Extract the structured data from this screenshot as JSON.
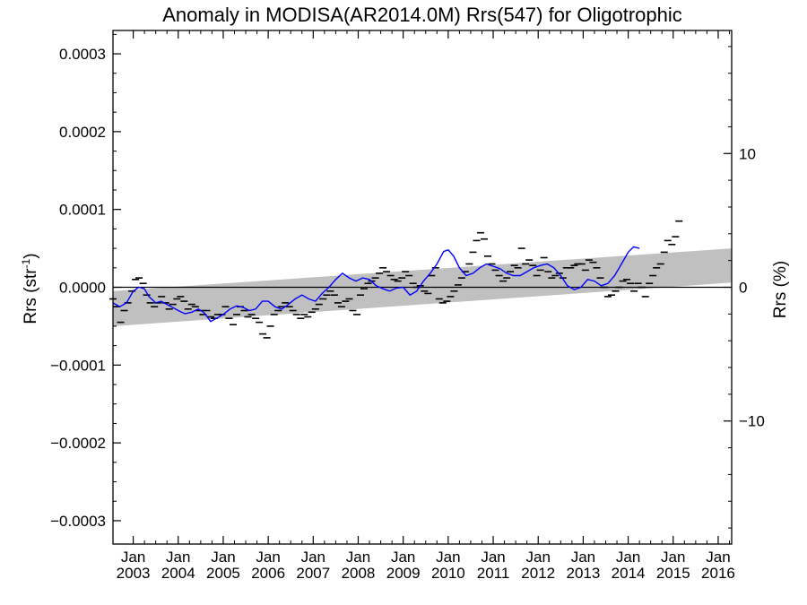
{
  "chart_data": {
    "type": "line",
    "title": "Anomaly in MODISA(AR2014.0M) Rrs(547) for Oligotrophic",
    "ylabel_left": "Rrs (str",
    "ylabel_left_sup": "-1",
    "ylabel_left_close": ")",
    "ylabel_right": "Rrs (%)",
    "xlim": [
      2002.55,
      2016.3
    ],
    "ylim_left": [
      -0.00033,
      0.00033
    ],
    "ylim_right": [
      -19.2,
      19.2
    ],
    "yticks_left": [
      {
        "v": 0.0003,
        "label": "0.0003"
      },
      {
        "v": 0.0002,
        "label": "0.0002"
      },
      {
        "v": 0.0001,
        "label": "0.0001"
      },
      {
        "v": 0.0,
        "label": "0.0000"
      },
      {
        "v": -0.0001,
        "label": "−0.0001"
      },
      {
        "v": -0.0002,
        "label": "−0.0002"
      },
      {
        "v": -0.0003,
        "label": "−0.0003"
      }
    ],
    "yticks_right": [
      {
        "v": 10,
        "label": "10"
      },
      {
        "v": 0,
        "label": "0"
      },
      {
        "v": -10,
        "label": "−10"
      }
    ],
    "xticks": [
      {
        "v": 2003,
        "top": "Jan",
        "bottom": "2003"
      },
      {
        "v": 2004,
        "top": "Jan",
        "bottom": "2004"
      },
      {
        "v": 2005,
        "top": "Jan",
        "bottom": "2005"
      },
      {
        "v": 2006,
        "top": "Jan",
        "bottom": "2006"
      },
      {
        "v": 2007,
        "top": "Jan",
        "bottom": "2007"
      },
      {
        "v": 2008,
        "top": "Jan",
        "bottom": "2008"
      },
      {
        "v": 2009,
        "top": "Jan",
        "bottom": "2009"
      },
      {
        "v": 2010,
        "top": "Jan",
        "bottom": "2010"
      },
      {
        "v": 2011,
        "top": "Jan",
        "bottom": "2011"
      },
      {
        "v": 2012,
        "top": "Jan",
        "bottom": "2012"
      },
      {
        "v": 2013,
        "top": "Jan",
        "bottom": "2013"
      },
      {
        "v": 2014,
        "top": "Jan",
        "bottom": "2014"
      },
      {
        "v": 2015,
        "top": "Jan",
        "bottom": "2015"
      },
      {
        "v": 2016,
        "top": "Jan",
        "bottom": "2016"
      }
    ],
    "trend_band": {
      "start": {
        "x": 2002.55,
        "upper": -5e-06,
        "lower": -5e-05
      },
      "end": {
        "x": 2016.3,
        "upper": 5e-05,
        "lower": 6e-06
      },
      "color": "#c0c0c0"
    },
    "zero_line": 0.0,
    "series": [
      {
        "kind": "monthly",
        "color": "#000000",
        "points": [
          [
            2002.55,
            -1.5e-05
          ],
          [
            2002.63,
            -2.5e-05
          ],
          [
            2002.72,
            -4.5e-05
          ],
          [
            2002.8,
            -3e-05
          ],
          [
            2002.88,
            -2e-05
          ],
          [
            2002.97,
            -5e-06
          ],
          [
            2003.05,
            1e-05
          ],
          [
            2003.13,
            1.2e-05
          ],
          [
            2003.22,
            5e-06
          ],
          [
            2003.3,
            -1e-05
          ],
          [
            2003.38,
            -2e-05
          ],
          [
            2003.47,
            -2.5e-05
          ],
          [
            2003.55,
            -2e-05
          ],
          [
            2003.63,
            -1.2e-05
          ],
          [
            2003.72,
            -2e-05
          ],
          [
            2003.8,
            -2.8e-05
          ],
          [
            2003.88,
            -2.2e-05
          ],
          [
            2003.97,
            -1.5e-05
          ],
          [
            2004.05,
            -1.2e-05
          ],
          [
            2004.13,
            -1.8e-05
          ],
          [
            2004.22,
            -2.8e-05
          ],
          [
            2004.3,
            -2.2e-05
          ],
          [
            2004.38,
            -2.5e-05
          ],
          [
            2004.47,
            -3e-05
          ],
          [
            2004.55,
            -3.5e-05
          ],
          [
            2004.63,
            -3e-05
          ],
          [
            2004.72,
            -3.8e-05
          ],
          [
            2004.8,
            -4e-05
          ],
          [
            2004.88,
            -3.5e-05
          ],
          [
            2004.97,
            -3.5e-05
          ],
          [
            2005.05,
            -2.5e-05
          ],
          [
            2005.13,
            -4e-05
          ],
          [
            2005.22,
            -4.8e-05
          ],
          [
            2005.3,
            -3.5e-05
          ],
          [
            2005.38,
            -2.5e-05
          ],
          [
            2005.47,
            -3e-05
          ],
          [
            2005.55,
            -3.8e-05
          ],
          [
            2005.63,
            -3.5e-05
          ],
          [
            2005.72,
            -4e-05
          ],
          [
            2005.8,
            -4.5e-05
          ],
          [
            2005.88,
            -6e-05
          ],
          [
            2005.97,
            -6.5e-05
          ],
          [
            2006.05,
            -5e-05
          ],
          [
            2006.13,
            -3.5e-05
          ],
          [
            2006.22,
            -3e-05
          ],
          [
            2006.3,
            -2.5e-05
          ],
          [
            2006.38,
            -2e-05
          ],
          [
            2006.47,
            -2.5e-05
          ],
          [
            2006.55,
            -3e-05
          ],
          [
            2006.63,
            -3.5e-05
          ],
          [
            2006.72,
            -4e-05
          ],
          [
            2006.8,
            -3.5e-05
          ],
          [
            2006.88,
            -3.8e-05
          ],
          [
            2006.97,
            -3.2e-05
          ],
          [
            2007.05,
            -2.8e-05
          ],
          [
            2007.13,
            -2.2e-05
          ],
          [
            2007.22,
            -1.5e-05
          ],
          [
            2007.3,
            -1e-05
          ],
          [
            2007.38,
            -5e-06
          ],
          [
            2007.47,
            -1e-05
          ],
          [
            2007.55,
            -2e-05
          ],
          [
            2007.63,
            -2.5e-05
          ],
          [
            2007.72,
            -1.8e-05
          ],
          [
            2007.8,
            -1.5e-05
          ],
          [
            2007.88,
            -3e-05
          ],
          [
            2007.97,
            -3.5e-05
          ],
          [
            2008.05,
            -1e-05
          ],
          [
            2008.13,
            -2e-06
          ],
          [
            2008.22,
            5e-06
          ],
          [
            2008.3,
            8e-06
          ],
          [
            2008.38,
            1.2e-05
          ],
          [
            2008.47,
            1.8e-05
          ],
          [
            2008.55,
            2.5e-05
          ],
          [
            2008.63,
            2e-05
          ],
          [
            2008.72,
            1.5e-05
          ],
          [
            2008.8,
            1e-05
          ],
          [
            2008.88,
            8e-06
          ],
          [
            2008.97,
            1.2e-05
          ],
          [
            2009.05,
            2e-05
          ],
          [
            2009.13,
            1.5e-05
          ],
          [
            2009.22,
            5e-06
          ],
          [
            2009.3,
            0.0
          ],
          [
            2009.38,
            2e-06
          ],
          [
            2009.47,
            -5e-06
          ],
          [
            2009.55,
            -8e-06
          ],
          [
            2009.63,
            1.5e-05
          ],
          [
            2009.72,
            2.5e-05
          ],
          [
            2009.8,
            -1.5e-05
          ],
          [
            2009.88,
            -2e-05
          ],
          [
            2009.97,
            -1.8e-05
          ],
          [
            2010.05,
            -1.2e-05
          ],
          [
            2010.13,
            -5e-06
          ],
          [
            2010.22,
            3e-06
          ],
          [
            2010.3,
            1.2e-05
          ],
          [
            2010.38,
            2e-05
          ],
          [
            2010.47,
            3e-05
          ],
          [
            2010.55,
            4.5e-05
          ],
          [
            2010.63,
            6e-05
          ],
          [
            2010.72,
            7e-05
          ],
          [
            2010.8,
            6.2e-05
          ],
          [
            2010.88,
            4e-05
          ],
          [
            2010.97,
            3e-05
          ],
          [
            2011.05,
            2.2e-05
          ],
          [
            2011.13,
            1.5e-05
          ],
          [
            2011.22,
            8e-06
          ],
          [
            2011.3,
            1.2e-05
          ],
          [
            2011.38,
            2e-05
          ],
          [
            2011.47,
            2.8e-05
          ],
          [
            2011.55,
            2.5e-05
          ],
          [
            2011.63,
            5e-05
          ],
          [
            2011.72,
            3e-05
          ],
          [
            2011.8,
            3.5e-05
          ],
          [
            2011.88,
            2.8e-05
          ],
          [
            2011.97,
            1.5e-05
          ],
          [
            2012.05,
            2.2e-05
          ],
          [
            2012.13,
            3.8e-05
          ],
          [
            2012.22,
            2e-05
          ],
          [
            2012.3,
            1.2e-05
          ],
          [
            2012.38,
            1.5e-05
          ],
          [
            2012.47,
            1.8e-05
          ],
          [
            2012.55,
            1.2e-05
          ],
          [
            2012.63,
            2.5e-05
          ],
          [
            2012.72,
            2.5e-05
          ],
          [
            2012.8,
            2.8e-05
          ],
          [
            2012.88,
            3e-05
          ],
          [
            2012.97,
            3e-05
          ],
          [
            2013.05,
            2.2e-05
          ],
          [
            2013.13,
            3.5e-05
          ],
          [
            2013.22,
            3.2e-05
          ],
          [
            2013.3,
            2.5e-05
          ],
          [
            2013.38,
            1.2e-05
          ],
          [
            2013.47,
            0.0
          ],
          [
            2013.55,
            -1.2e-05
          ],
          [
            2013.63,
            -1e-05
          ],
          [
            2013.72,
            -5e-06
          ],
          [
            2013.8,
            0.0
          ],
          [
            2013.88,
            8e-06
          ],
          [
            2013.97,
            1e-05
          ],
          [
            2014.05,
            5e-06
          ],
          [
            2014.13,
            -5e-06
          ],
          [
            2014.22,
            5e-06
          ],
          [
            2014.3,
            0.0
          ],
          [
            2014.38,
            -1.2e-05
          ],
          [
            2014.47,
            5e-06
          ],
          [
            2014.55,
            1.5e-05
          ],
          [
            2014.63,
            2.5e-05
          ],
          [
            2014.72,
            3e-05
          ],
          [
            2014.8,
            4.5e-05
          ],
          [
            2014.88,
            6e-05
          ],
          [
            2014.97,
            5.5e-05
          ],
          [
            2015.05,
            6.5e-05
          ],
          [
            2015.13,
            8.5e-05
          ]
        ]
      },
      {
        "kind": "running-mean",
        "color": "#0000ff",
        "points": [
          [
            2002.55,
            -2e-05
          ],
          [
            2002.7,
            -2.5e-05
          ],
          [
            2002.85,
            -2e-05
          ],
          [
            2003.0,
            -5e-06
          ],
          [
            2003.12,
            0.0
          ],
          [
            2003.25,
            -2e-06
          ],
          [
            2003.35,
            -1.2e-05
          ],
          [
            2003.5,
            -2e-05
          ],
          [
            2003.62,
            -1.8e-05
          ],
          [
            2003.75,
            -2.2e-05
          ],
          [
            2003.88,
            -2.6e-05
          ],
          [
            2004.0,
            -3e-05
          ],
          [
            2004.15,
            -3.4e-05
          ],
          [
            2004.3,
            -3.2e-05
          ],
          [
            2004.45,
            -2.8e-05
          ],
          [
            2004.58,
            -3.3e-05
          ],
          [
            2004.72,
            -4.4e-05
          ],
          [
            2004.85,
            -4e-05
          ],
          [
            2005.0,
            -3.5e-05
          ],
          [
            2005.15,
            -2.8e-05
          ],
          [
            2005.3,
            -2.4e-05
          ],
          [
            2005.45,
            -2.6e-05
          ],
          [
            2005.58,
            -3e-05
          ],
          [
            2005.72,
            -2.8e-05
          ],
          [
            2005.87,
            -1.8e-05
          ],
          [
            2006.0,
            -1.8e-05
          ],
          [
            2006.15,
            -2.5e-05
          ],
          [
            2006.3,
            -2.8e-05
          ],
          [
            2006.45,
            -2.2e-05
          ],
          [
            2006.6,
            -1.5e-05
          ],
          [
            2006.75,
            -1e-05
          ],
          [
            2006.9,
            -1.5e-05
          ],
          [
            2007.05,
            -1.8e-05
          ],
          [
            2007.2,
            -8e-06
          ],
          [
            2007.35,
            0.0
          ],
          [
            2007.5,
            1e-05
          ],
          [
            2007.65,
            1.8e-05
          ],
          [
            2007.8,
            1.2e-05
          ],
          [
            2007.95,
            8e-06
          ],
          [
            2008.1,
            1.2e-05
          ],
          [
            2008.25,
            1e-05
          ],
          [
            2008.4,
            2e-06
          ],
          [
            2008.55,
            -2e-06
          ],
          [
            2008.7,
            -5e-06
          ],
          [
            2008.85,
            -1e-06
          ],
          [
            2009.0,
            0.0
          ],
          [
            2009.15,
            -1e-05
          ],
          [
            2009.3,
            -5e-06
          ],
          [
            2009.45,
            8e-06
          ],
          [
            2009.6,
            1.8e-05
          ],
          [
            2009.75,
            3e-05
          ],
          [
            2009.9,
            4.6e-05
          ],
          [
            2010.0,
            4.8e-05
          ],
          [
            2010.12,
            4e-05
          ],
          [
            2010.25,
            2.5e-05
          ],
          [
            2010.4,
            1.5e-05
          ],
          [
            2010.55,
            1.8e-05
          ],
          [
            2010.7,
            2.5e-05
          ],
          [
            2010.85,
            3e-05
          ],
          [
            2011.0,
            2.7e-05
          ],
          [
            2011.15,
            2.4e-05
          ],
          [
            2011.3,
            1.8e-05
          ],
          [
            2011.45,
            1.5e-05
          ],
          [
            2011.6,
            1.5e-05
          ],
          [
            2011.75,
            2e-05
          ],
          [
            2011.9,
            2.5e-05
          ],
          [
            2012.05,
            2.8e-05
          ],
          [
            2012.2,
            3e-05
          ],
          [
            2012.35,
            2.5e-05
          ],
          [
            2012.5,
            1.5e-05
          ],
          [
            2012.65,
            2e-06
          ],
          [
            2012.8,
            -3e-06
          ],
          [
            2012.95,
            0.0
          ],
          [
            2013.1,
            1e-05
          ],
          [
            2013.25,
            8e-06
          ],
          [
            2013.4,
            2e-06
          ],
          [
            2013.55,
            5e-06
          ],
          [
            2013.7,
            1.5e-05
          ],
          [
            2013.85,
            3e-05
          ],
          [
            2014.0,
            4.5e-05
          ],
          [
            2014.12,
            5.2e-05
          ],
          [
            2014.25,
            5e-05
          ]
        ]
      }
    ]
  }
}
